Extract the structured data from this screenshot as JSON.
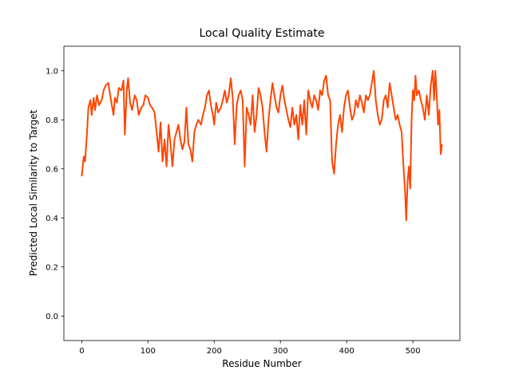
{
  "chart_data": {
    "type": "line",
    "title": "Local Quality Estimate",
    "xlabel": "Residue Number",
    "ylabel": "Predicted Local Similarity to Target",
    "color": "#ff4500",
    "xlim": [
      -27,
      571
    ],
    "ylim": [
      -0.1,
      1.1
    ],
    "xticks": [
      0,
      100,
      200,
      300,
      400,
      500
    ],
    "yticks": [
      {
        "value": 0,
        "label": "0.0"
      },
      0.2,
      0.4,
      0.6,
      0.8,
      {
        "value": 1,
        "label": "1.0"
      }
    ],
    "grid": false,
    "x": [
      0,
      3,
      5,
      8,
      10,
      13,
      15,
      18,
      20,
      23,
      26,
      30,
      33,
      36,
      40,
      43,
      46,
      48,
      50,
      53,
      56,
      60,
      63,
      65,
      68,
      70,
      73,
      76,
      80,
      83,
      86,
      90,
      93,
      96,
      100,
      103,
      106,
      110,
      113,
      116,
      119,
      122,
      125,
      128,
      131,
      134,
      137,
      140,
      143,
      146,
      149,
      152,
      155,
      158,
      161,
      164,
      167,
      170,
      173,
      176,
      180,
      183,
      186,
      189,
      192,
      195,
      198,
      200,
      203,
      206,
      210,
      213,
      216,
      219,
      222,
      225,
      228,
      231,
      234,
      237,
      240,
      243,
      246,
      249,
      252,
      255,
      258,
      261,
      264,
      267,
      270,
      273,
      276,
      279,
      282,
      285,
      288,
      291,
      294,
      297,
      300,
      303,
      306,
      309,
      312,
      315,
      318,
      321,
      324,
      327,
      330,
      333,
      336,
      339,
      342,
      345,
      348,
      351,
      354,
      357,
      360,
      363,
      366,
      369,
      372,
      375,
      378,
      381,
      384,
      387,
      390,
      393,
      396,
      399,
      402,
      405,
      408,
      411,
      414,
      417,
      420,
      423,
      426,
      429,
      432,
      435,
      438,
      441,
      444,
      447,
      450,
      453,
      456,
      459,
      462,
      465,
      468,
      471,
      474,
      477,
      480,
      483,
      486,
      488,
      490,
      492,
      494,
      496,
      498,
      500,
      502,
      504,
      506,
      509,
      512,
      515,
      518,
      521,
      524,
      527,
      530,
      532,
      534,
      536,
      538,
      540,
      542,
      544
    ],
    "values": [
      0.57,
      0.65,
      0.63,
      0.75,
      0.85,
      0.88,
      0.82,
      0.89,
      0.84,
      0.9,
      0.86,
      0.88,
      0.92,
      0.94,
      0.95,
      0.9,
      0.85,
      0.82,
      0.89,
      0.87,
      0.93,
      0.92,
      0.96,
      0.74,
      0.92,
      0.97,
      0.87,
      0.84,
      0.9,
      0.88,
      0.82,
      0.85,
      0.86,
      0.9,
      0.89,
      0.86,
      0.85,
      0.83,
      0.75,
      0.67,
      0.79,
      0.63,
      0.72,
      0.61,
      0.78,
      0.7,
      0.61,
      0.72,
      0.75,
      0.78,
      0.72,
      0.68,
      0.71,
      0.85,
      0.7,
      0.68,
      0.63,
      0.75,
      0.78,
      0.8,
      0.78,
      0.82,
      0.85,
      0.9,
      0.92,
      0.86,
      0.82,
      0.78,
      0.87,
      0.83,
      0.85,
      0.88,
      0.92,
      0.87,
      0.9,
      0.97,
      0.89,
      0.7,
      0.86,
      0.9,
      0.92,
      0.88,
      0.61,
      0.85,
      0.82,
      0.78,
      0.9,
      0.75,
      0.82,
      0.93,
      0.9,
      0.85,
      0.75,
      0.67,
      0.8,
      0.88,
      0.95,
      0.9,
      0.85,
      0.83,
      0.9,
      0.94,
      0.88,
      0.84,
      0.8,
      0.77,
      0.85,
      0.78,
      0.82,
      0.72,
      0.86,
      0.78,
      0.88,
      0.74,
      0.92,
      0.88,
      0.85,
      0.9,
      0.88,
      0.84,
      0.92,
      0.9,
      0.96,
      0.98,
      0.9,
      0.88,
      0.63,
      0.58,
      0.7,
      0.78,
      0.82,
      0.75,
      0.85,
      0.9,
      0.92,
      0.85,
      0.8,
      0.82,
      0.88,
      0.85,
      0.9,
      0.87,
      0.83,
      0.9,
      0.88,
      0.9,
      0.95,
      1.0,
      0.88,
      0.82,
      0.78,
      0.8,
      0.88,
      0.9,
      0.85,
      0.95,
      0.9,
      0.85,
      0.8,
      0.82,
      0.78,
      0.75,
      0.6,
      0.52,
      0.39,
      0.55,
      0.61,
      0.52,
      0.8,
      0.92,
      0.88,
      0.98,
      0.9,
      0.92,
      0.88,
      0.85,
      0.8,
      0.9,
      0.82,
      0.94,
      1.0,
      0.88,
      1.0,
      0.9,
      0.78,
      0.84,
      0.66,
      0.7
    ]
  }
}
